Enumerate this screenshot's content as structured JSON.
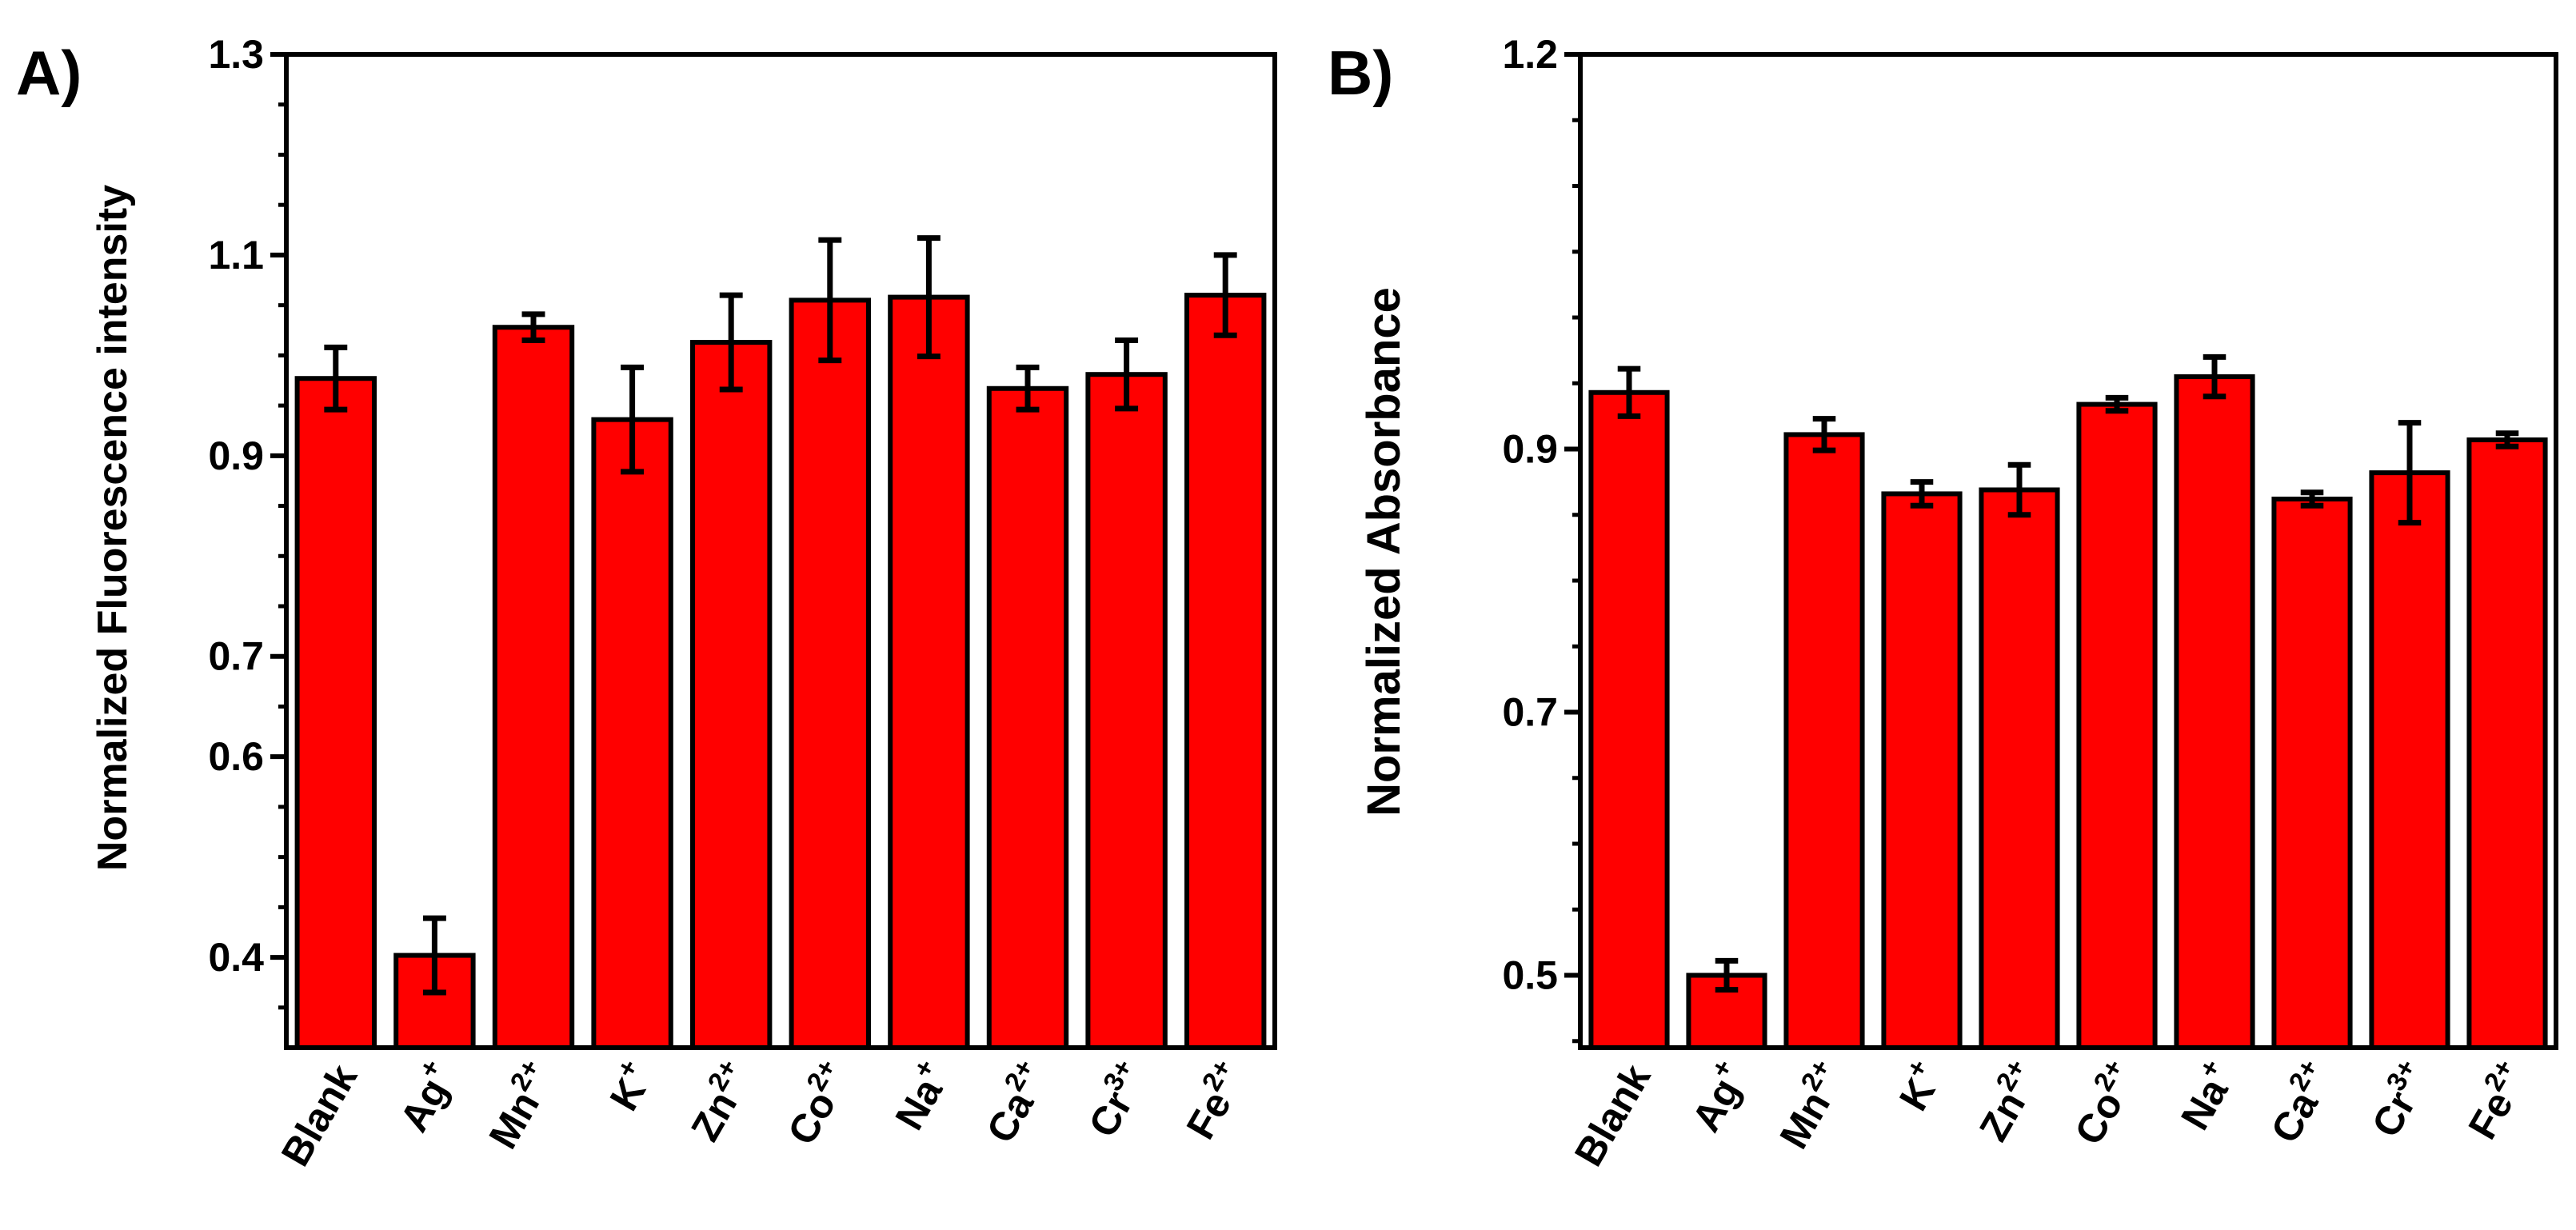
{
  "colors": {
    "bar": "#ff0000",
    "axis": "#000000",
    "background": "#ffffff"
  },
  "chart_data": [
    {
      "type": "bar",
      "panel_label": "A)",
      "title": "",
      "xlabel": "",
      "ylabel": "Normalized Fluorescence intensity",
      "ylim": [
        0.31,
        1.3
      ],
      "yticks": [
        0.4,
        0.6,
        0.7,
        0.9,
        1.1,
        1.3
      ],
      "yticks_labels": [
        "0.4",
        "0.6",
        "0.7",
        "0.9",
        "1.1",
        "1.3"
      ],
      "minor_tick_step": 0.05,
      "categories": [
        {
          "base": "Blank",
          "sup": ""
        },
        {
          "base": "Ag",
          "sup": "+"
        },
        {
          "base": "Mn",
          "sup": "2+"
        },
        {
          "base": "K",
          "sup": "+"
        },
        {
          "base": "Zn",
          "sup": "2+"
        },
        {
          "base": "Co",
          "sup": "2+"
        },
        {
          "base": "Na",
          "sup": "+"
        },
        {
          "base": "Ca",
          "sup": "2+"
        },
        {
          "base": "Cr",
          "sup": "3+"
        },
        {
          "base": "Fe",
          "sup": "2+"
        }
      ],
      "values": [
        0.977,
        0.402,
        1.028,
        0.936,
        1.013,
        1.055,
        1.058,
        0.967,
        0.981,
        1.06
      ],
      "errors": [
        0.031,
        0.037,
        0.013,
        0.052,
        0.047,
        0.06,
        0.059,
        0.021,
        0.034,
        0.04
      ],
      "grid": false
    },
    {
      "type": "bar",
      "panel_label": "B)",
      "title": "",
      "xlabel": "",
      "ylabel": "Normalized  Absorbance",
      "ylim": [
        0.445,
        1.2
      ],
      "yticks": [
        0.5,
        0.7,
        0.9,
        1.2
      ],
      "yticks_labels": [
        "0.5",
        "0.7",
        "0.9",
        "1.2"
      ],
      "minor_tick_step": 0.05,
      "categories": [
        {
          "base": "Blank",
          "sup": ""
        },
        {
          "base": "Ag",
          "sup": "+"
        },
        {
          "base": "Mn",
          "sup": "2+"
        },
        {
          "base": "K",
          "sup": "+"
        },
        {
          "base": "Zn",
          "sup": "2+"
        },
        {
          "base": "Co",
          "sup": "2+"
        },
        {
          "base": "Na",
          "sup": "+"
        },
        {
          "base": "Ca",
          "sup": "2+"
        },
        {
          "base": "Cr",
          "sup": "3+"
        },
        {
          "base": "Fe",
          "sup": "2+"
        }
      ],
      "values": [
        0.943,
        0.5,
        0.911,
        0.866,
        0.869,
        0.934,
        0.955,
        0.862,
        0.882,
        0.907
      ],
      "errors": [
        0.018,
        0.011,
        0.012,
        0.009,
        0.019,
        0.005,
        0.015,
        0.005,
        0.038,
        0.005
      ],
      "grid": false
    }
  ]
}
